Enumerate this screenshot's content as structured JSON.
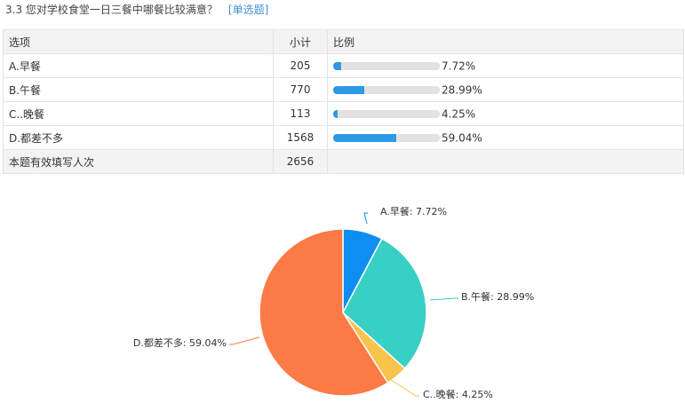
{
  "question": {
    "title": "3.3 您对学校食堂一日三餐中哪餐比较满意？",
    "type": "[单选题]"
  },
  "table": {
    "headers": [
      "选项",
      "小计",
      "比例"
    ],
    "rows": [
      {
        "option": "A.早餐",
        "count": "205",
        "percent": "7.72%",
        "fraction": 0.0772
      },
      {
        "option": "B.午餐",
        "count": "770",
        "percent": "28.99%",
        "fraction": 0.2899
      },
      {
        "option": "C..晚餐",
        "count": "113",
        "percent": "4.25%",
        "fraction": 0.0425
      },
      {
        "option": "D.都差不多",
        "count": "1568",
        "percent": "59.04%",
        "fraction": 0.5904
      }
    ],
    "footer": {
      "label": "本题有效填写人次",
      "count": "2656"
    }
  },
  "chart_data": {
    "type": "pie",
    "categories": [
      "A.早餐",
      "B.午餐",
      "C..晚餐",
      "D.都差不多"
    ],
    "values": [
      7.72,
      28.99,
      4.25,
      59.04
    ],
    "labels": [
      "A.早餐: 7.72%",
      "B.午餐: 28.99%",
      "C..晚餐: 4.25%",
      "D.都差不多: 59.04%"
    ],
    "colors": [
      "#0e8ef0",
      "#38cfc4",
      "#f8c44b",
      "#fb7a45"
    ]
  }
}
